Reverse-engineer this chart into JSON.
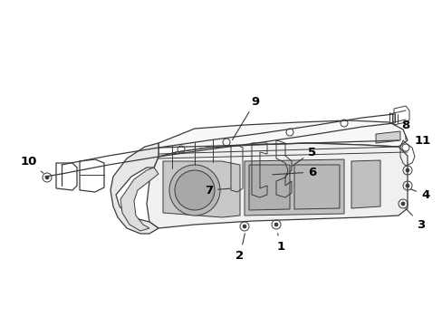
{
  "background_color": "#ffffff",
  "line_color": "#3a3a3a",
  "text_color": "#000000",
  "figsize": [
    4.89,
    3.6
  ],
  "dpi": 100,
  "label_fontsize": 9.5
}
